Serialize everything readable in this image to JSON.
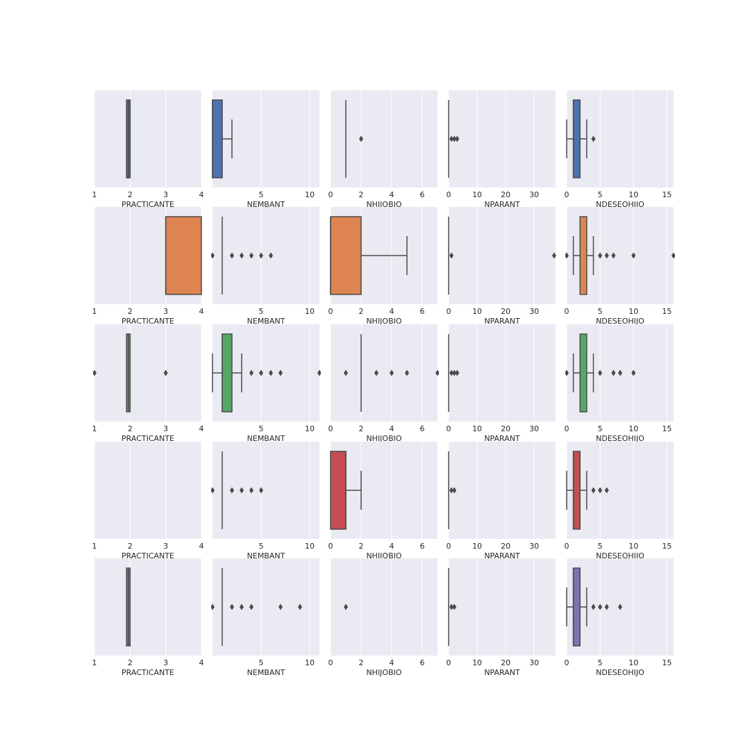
{
  "chart_data": {
    "type": "box",
    "layout": "grid 5 rows x 5 columns",
    "grid": true,
    "xlabels": [
      "PRACTICANTE",
      "NEMBANT",
      "NHIJOBIO",
      "NPARANT",
      "NDESEOHIJO"
    ],
    "x_ranges": [
      [
        1,
        4
      ],
      [
        0,
        11
      ],
      [
        0,
        7
      ],
      [
        0,
        37.5
      ],
      [
        0,
        16
      ]
    ],
    "x_ticks": [
      [
        1,
        2,
        3,
        4
      ],
      [
        5,
        10
      ],
      [
        0,
        2,
        4,
        6
      ],
      [
        0,
        10,
        20,
        30
      ],
      [
        0,
        5,
        10,
        15
      ]
    ],
    "row_colors": [
      "#4c72b0",
      "#dd8452",
      "#55a868",
      "#c44e52",
      "#8172b3"
    ],
    "panels": [
      [
        {
          "q1": 1.9,
          "median": 1.95,
          "q3": 2.0,
          "whislo": 1.9,
          "whishi": 2.0,
          "fliers": []
        },
        {
          "q1": 0,
          "median": 0,
          "q3": 1,
          "whislo": 0,
          "whishi": 2,
          "fliers": []
        },
        {
          "q1": 1,
          "median": 1,
          "q3": 1,
          "whislo": 1,
          "whishi": 1,
          "fliers": [
            2
          ]
        },
        {
          "q1": 0,
          "median": 0,
          "q3": 0,
          "whislo": 0,
          "whishi": 0,
          "fliers": [
            1,
            2,
            3
          ]
        },
        {
          "q1": 1,
          "median": 1,
          "q3": 2,
          "whislo": 0,
          "whishi": 3,
          "fliers": [
            4
          ]
        }
      ],
      [
        {
          "q1": 3,
          "median": 3,
          "q3": 4,
          "whislo": 3,
          "whishi": 4,
          "fliers": []
        },
        {
          "q1": 1,
          "median": 1,
          "q3": 1,
          "whislo": 1,
          "whishi": 1,
          "fliers": [
            0,
            2,
            3,
            4,
            5,
            6
          ]
        },
        {
          "q1": 0,
          "median": 0,
          "q3": 2,
          "whislo": 0,
          "whishi": 5,
          "fliers": []
        },
        {
          "q1": 0,
          "median": 0,
          "q3": 0,
          "whislo": 0,
          "whishi": 0,
          "fliers": [
            1,
            37
          ]
        },
        {
          "q1": 2,
          "median": 2,
          "q3": 3,
          "whislo": 1,
          "whishi": 4,
          "fliers": [
            0,
            5,
            6,
            7,
            10,
            16
          ]
        }
      ],
      [
        {
          "q1": 1.9,
          "median": 1.95,
          "q3": 2.0,
          "whislo": 1.9,
          "whishi": 2.0,
          "fliers": [
            1,
            3
          ]
        },
        {
          "q1": 1,
          "median": 1,
          "q3": 2,
          "whislo": 0,
          "whishi": 3,
          "fliers": [
            4,
            5,
            6,
            7,
            11
          ]
        },
        {
          "q1": 2,
          "median": 2,
          "q3": 2,
          "whislo": 2,
          "whishi": 2,
          "fliers": [
            1,
            3,
            4,
            5,
            7
          ]
        },
        {
          "q1": 0,
          "median": 0,
          "q3": 0,
          "whislo": 0,
          "whishi": 0,
          "fliers": [
            1,
            2,
            3
          ]
        },
        {
          "q1": 2,
          "median": 2,
          "q3": 3,
          "whislo": 1,
          "whishi": 4,
          "fliers": [
            0,
            5,
            7,
            8,
            10
          ]
        }
      ],
      [
        null,
        {
          "q1": 1,
          "median": 1,
          "q3": 1,
          "whislo": 1,
          "whishi": 1,
          "fliers": [
            0,
            2,
            3,
            4,
            5
          ]
        },
        {
          "q1": 0,
          "median": 1,
          "q3": 1,
          "whislo": 0,
          "whishi": 2,
          "fliers": []
        },
        {
          "q1": 0,
          "median": 0,
          "q3": 0,
          "whislo": 0,
          "whishi": 0,
          "fliers": [
            1,
            2
          ]
        },
        {
          "q1": 1,
          "median": 1,
          "q3": 2,
          "whislo": 0,
          "whishi": 3,
          "fliers": [
            4,
            5,
            6
          ]
        }
      ],
      [
        {
          "q1": 1.9,
          "median": 1.95,
          "q3": 2.0,
          "whislo": 1.9,
          "whishi": 2.0,
          "fliers": []
        },
        {
          "q1": 1,
          "median": 1,
          "q3": 1,
          "whislo": 1,
          "whishi": 1,
          "fliers": [
            0,
            2,
            3,
            4,
            7,
            9
          ]
        },
        {
          "q1": null,
          "median": null,
          "q3": null,
          "whislo": null,
          "whishi": null,
          "fliers": [
            1
          ]
        },
        {
          "q1": 0,
          "median": 0,
          "q3": 0,
          "whislo": 0,
          "whishi": 0,
          "fliers": [
            1,
            2
          ]
        },
        {
          "q1": 1,
          "median": 1,
          "q3": 2,
          "whislo": 0,
          "whishi": 3,
          "fliers": [
            4,
            5,
            6,
            8
          ]
        }
      ]
    ]
  }
}
